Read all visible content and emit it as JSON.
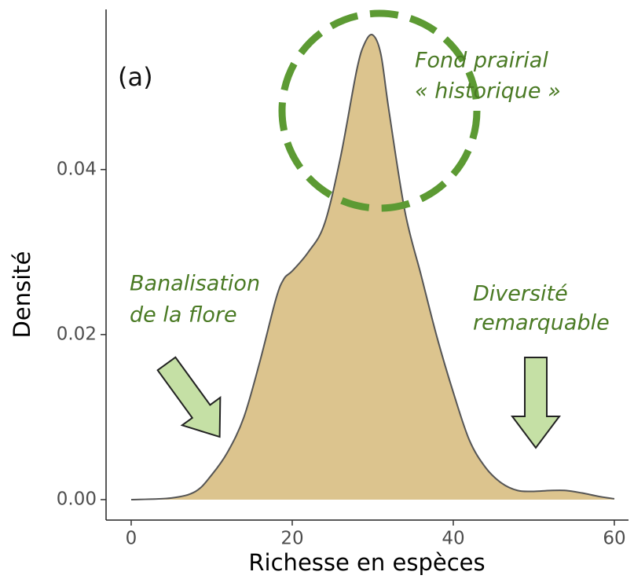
{
  "chart_data": {
    "type": "density",
    "xlabel": "Richesse en espèces",
    "ylabel": "Densité",
    "x": [
      0,
      5,
      8,
      10,
      12,
      14,
      16,
      18,
      19,
      20,
      22,
      24,
      26,
      28,
      29,
      30,
      31,
      32,
      34,
      36,
      38,
      40,
      42,
      44,
      46,
      48,
      50,
      52,
      54,
      56,
      58,
      60
    ],
    "values": [
      0,
      0.0002,
      0.001,
      0.003,
      0.0058,
      0.01,
      0.0168,
      0.0244,
      0.0268,
      0.0277,
      0.03,
      0.0334,
      0.0415,
      0.052,
      0.0553,
      0.0563,
      0.054,
      0.0472,
      0.0349,
      0.0272,
      0.0196,
      0.013,
      0.0072,
      0.0039,
      0.002,
      0.0011,
      0.001,
      0.0011,
      0.0011,
      0.0008,
      0.0004,
      0.0001
    ],
    "color": "#dcc48e",
    "line_color": "#555555",
    "xlim": [
      -3.12,
      61.76
    ],
    "ylim": [
      -0.00248,
      0.0594
    ],
    "xticks": [
      0,
      20,
      40,
      60
    ],
    "yticks": [
      {
        "value": 0,
        "label": "0.00"
      },
      {
        "value": 0.02,
        "label": "0.02"
      },
      {
        "value": 0.04,
        "label": "0.04"
      }
    ],
    "annotations": [
      "(a)",
      "Fond prairial",
      "« historique »",
      "Banalisation",
      "de la flore",
      "Diversité",
      "remarquable"
    ]
  }
}
